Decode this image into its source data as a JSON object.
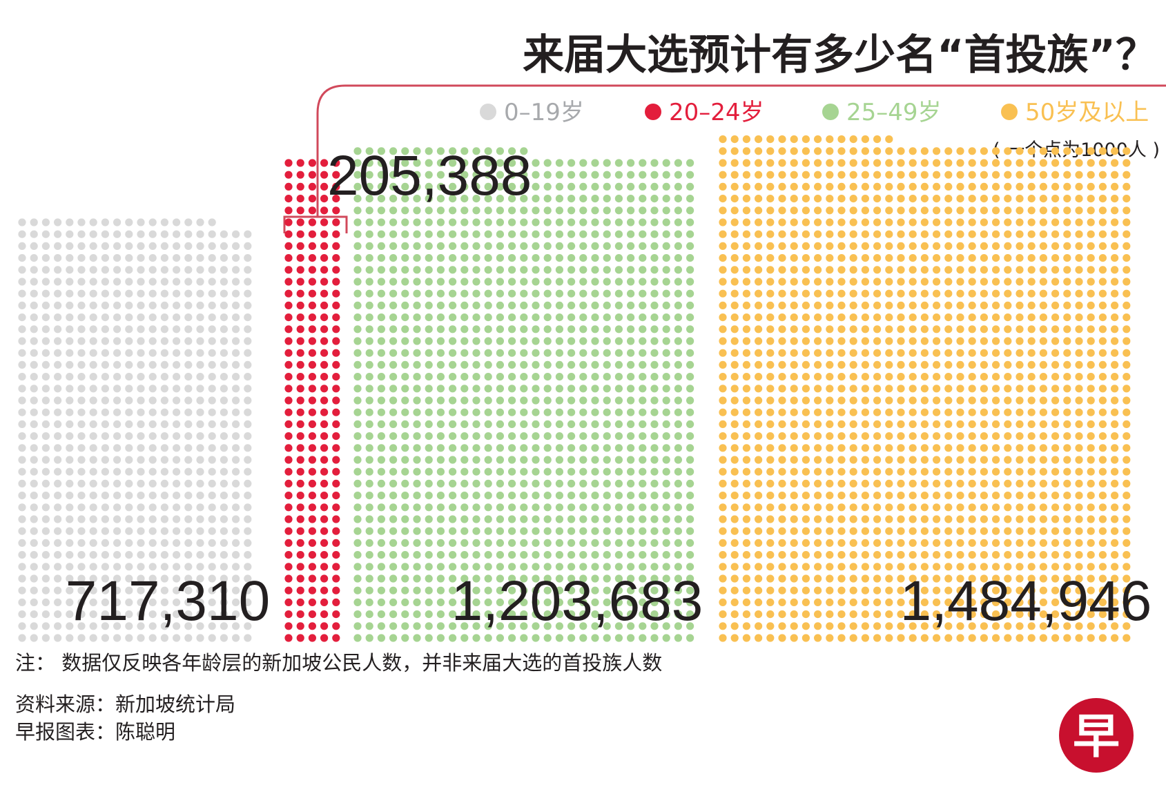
{
  "chart_data": {
    "type": "waffle",
    "title": "来届大选预计有多少名“首投族”？",
    "unit_note": "( 一个点为1000人 )",
    "unit_per_dot": 1000,
    "categories": [
      "0–19岁",
      "20–24岁",
      "25–49岁",
      "50岁及以上"
    ],
    "values": [
      717310,
      205388,
      1203683,
      1484946
    ],
    "value_labels": [
      "717,310",
      "205,388",
      "1,203,683",
      "1,484,946"
    ],
    "colors": [
      "#d9d9d9",
      "#e31e3c",
      "#a6d492",
      "#f9c052"
    ],
    "highlight_category": "20–24岁",
    "legend_position": "top-right"
  },
  "notes": {
    "note": "注： 数据仅反映各年龄层的新加坡公民人数，并非来届大选的首投族人数",
    "source": "资料来源：新加坡统计局",
    "credit": "早报图表：陈聪明"
  },
  "logo": {
    "glyph": "早",
    "color": "#c8102e",
    "icon": "zaobao-logo-icon"
  }
}
